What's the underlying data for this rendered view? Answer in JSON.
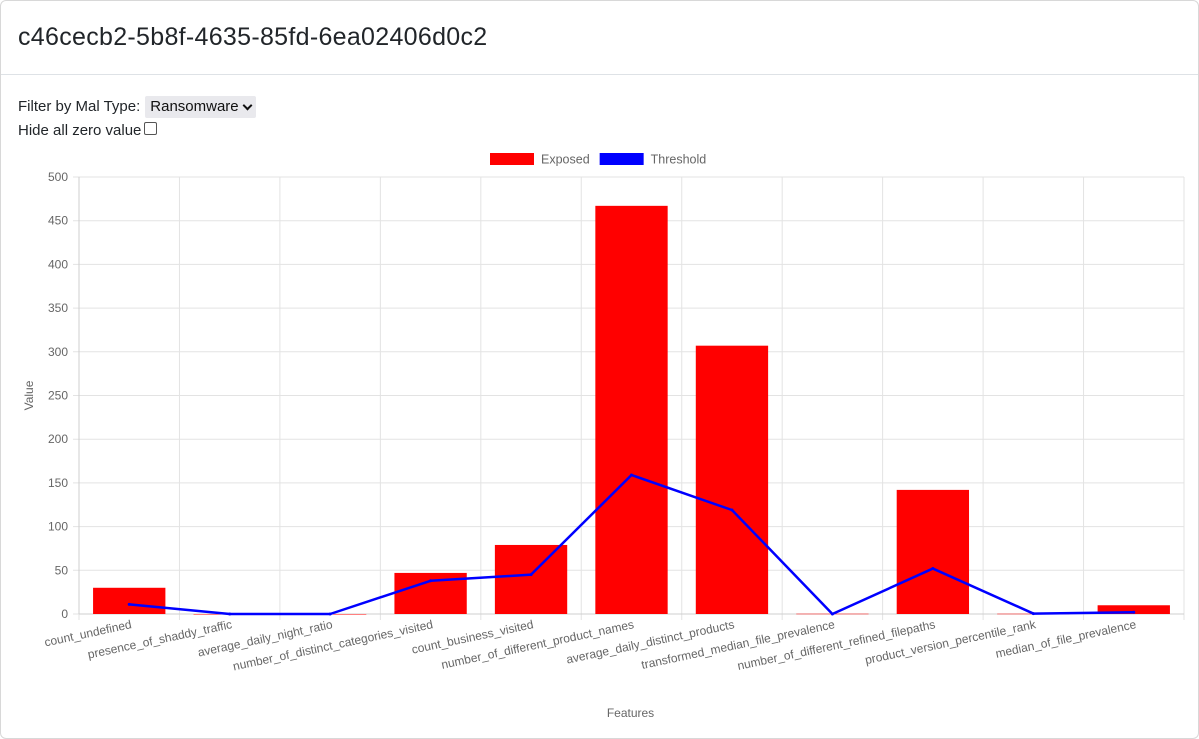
{
  "header": {
    "title": "c46cecb2-5b8f-4635-85fd-6ea02406d0c2"
  },
  "filter": {
    "label": "Filter by Mal Type:",
    "selected": "Ransomware"
  },
  "hide_zero": {
    "label": "Hide all zero value",
    "checked": false
  },
  "icons": {
    "select_chevron": "chevron-down-icon",
    "checkbox": "checkbox-icon"
  },
  "chart_data": {
    "type": "bar",
    "xlabel": "Features",
    "ylabel": "Value",
    "ylim": [
      0,
      500
    ],
    "yticks": [
      0,
      50,
      100,
      150,
      200,
      250,
      300,
      350,
      400,
      450,
      500
    ],
    "grid": true,
    "legend_position": "top-center",
    "categories": [
      "count_undefined",
      "presence_of_shaddy_traffic",
      "average_daily_night_ratio",
      "number_of_distinct_categories_visited",
      "count_business_visited",
      "number_of_different_product_names",
      "average_daily_distinct_products",
      "transformed_median_file_prevalence",
      "number_of_different_refined_filepaths",
      "product_version_percentile_rank",
      "median_of_file_prevalence"
    ],
    "series": [
      {
        "name": "Exposed",
        "type": "bar",
        "color": "#ff0000",
        "values": [
          30,
          0,
          0,
          47,
          79,
          467,
          307,
          0.3,
          142,
          0.3,
          10
        ]
      },
      {
        "name": "Threshold",
        "type": "line",
        "color": "#0000ff",
        "values": [
          11,
          0,
          0,
          38,
          45,
          159,
          119,
          0,
          52,
          0.5,
          2
        ]
      }
    ]
  }
}
